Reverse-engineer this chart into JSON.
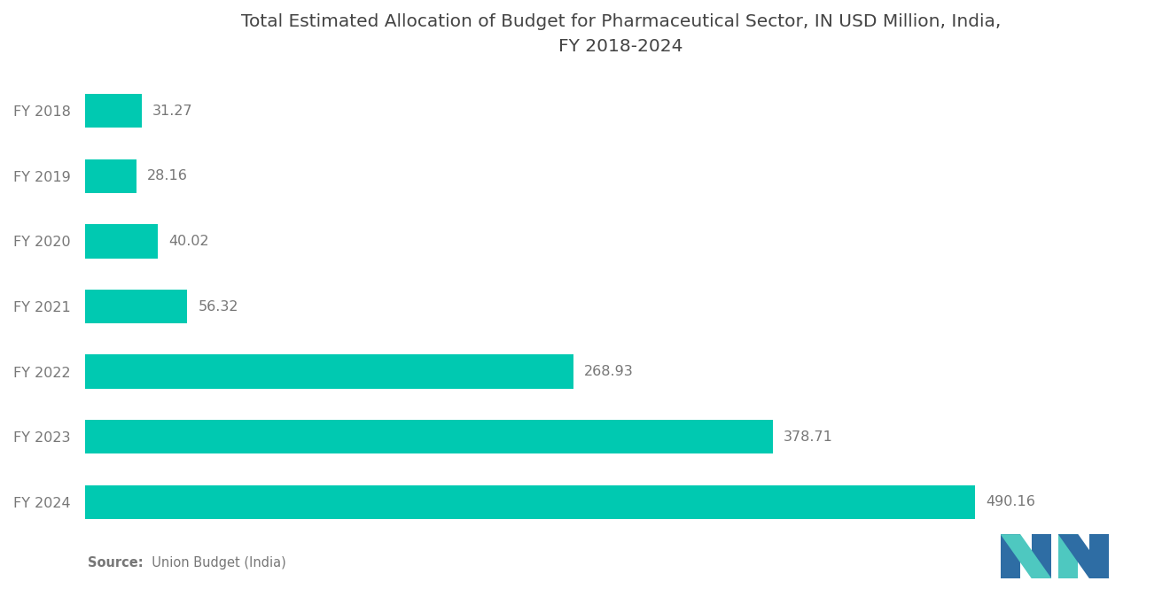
{
  "title": "Total Estimated Allocation of Budget for Pharmaceutical Sector, IN USD Million, India,\nFY 2018-2024",
  "categories": [
    "FY 2018",
    "FY 2019",
    "FY 2020",
    "FY 2021",
    "FY 2022",
    "FY 2023",
    "FY 2024"
  ],
  "values": [
    31.27,
    28.16,
    40.02,
    56.32,
    268.93,
    378.71,
    490.16
  ],
  "bar_color": "#00C9B1",
  "label_color": "#777777",
  "title_color": "#444444",
  "source_bold": "Source:",
  "source_rest": "  Union Budget (India)",
  "background_color": "#ffffff",
  "title_fontsize": 14.5,
  "tick_fontsize": 11.5,
  "value_fontsize": 11.5,
  "source_fontsize": 10.5,
  "logo_blue": "#2E6DA4",
  "logo_teal": "#4EC8C0"
}
